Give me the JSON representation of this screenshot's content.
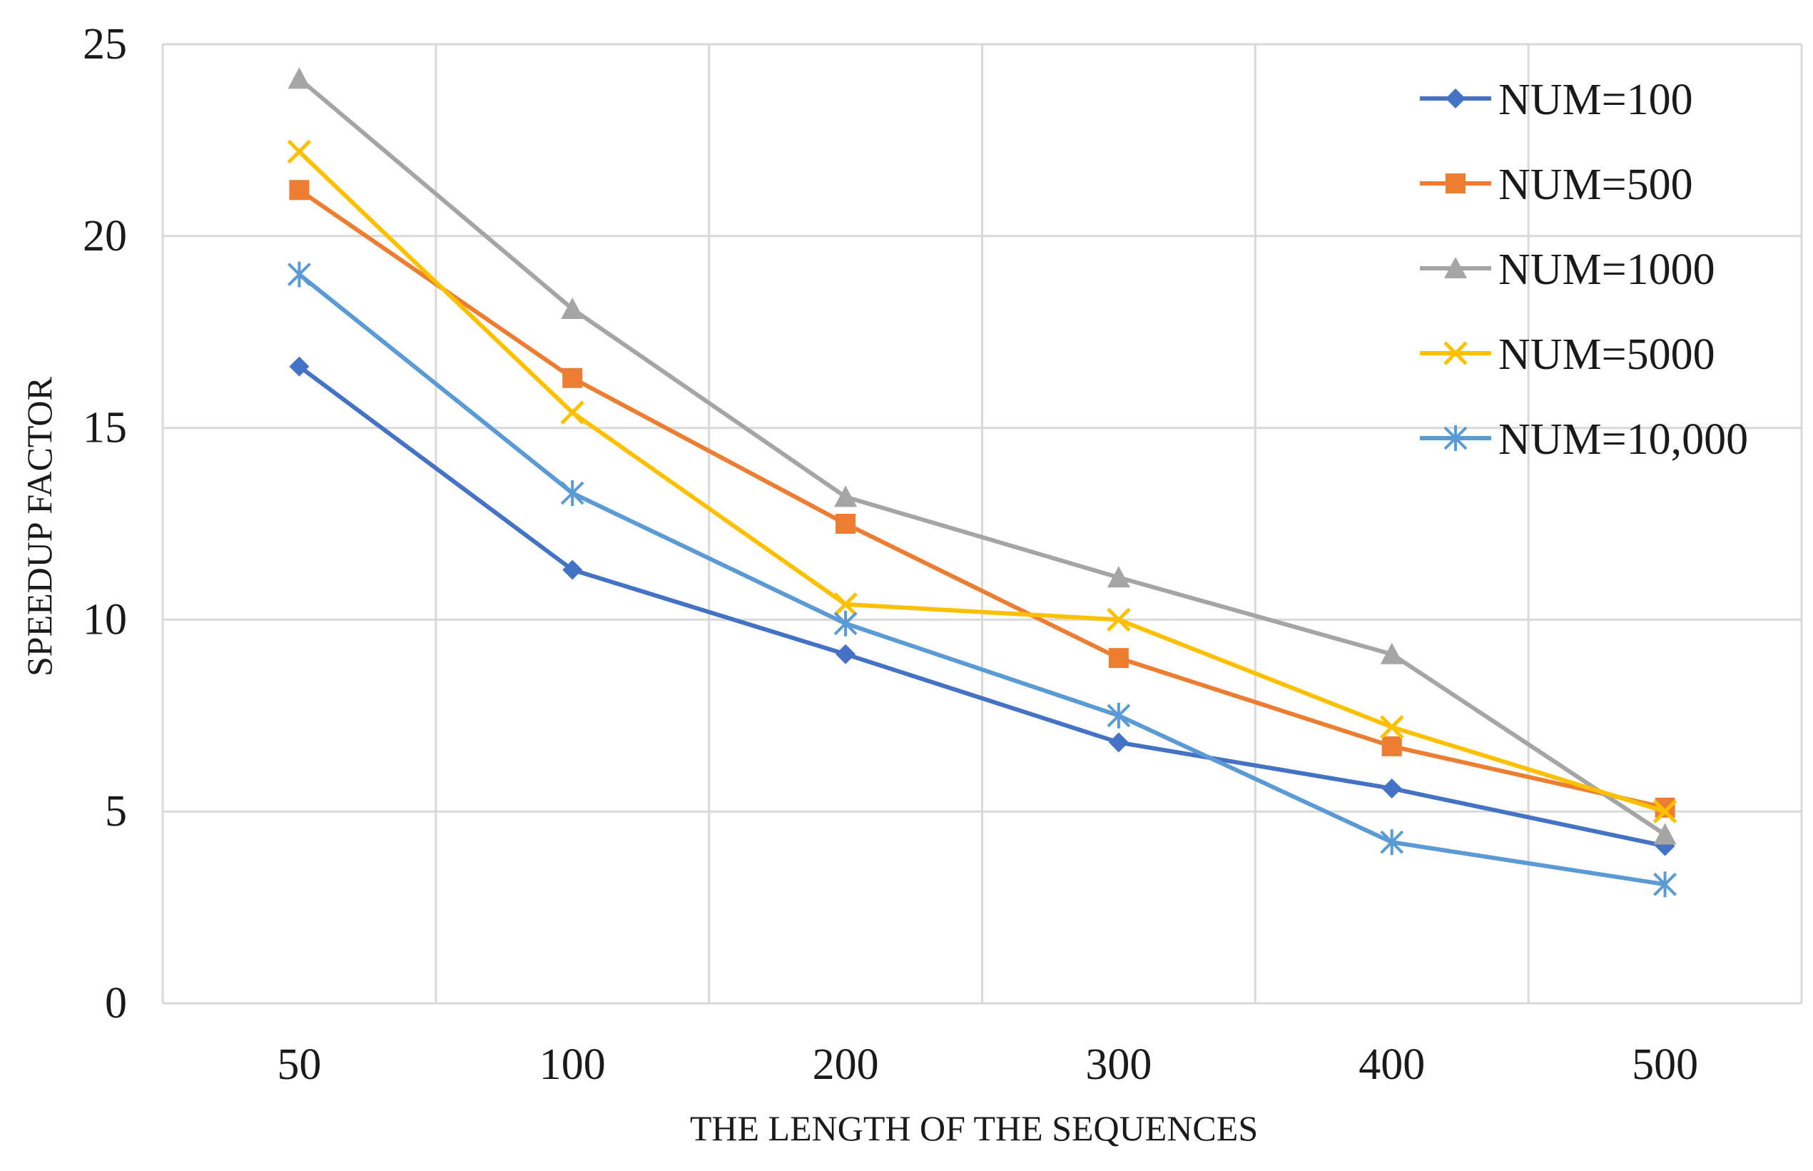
{
  "chart_data": {
    "type": "line",
    "title": "",
    "xlabel": "THE LENGTH OF THE SEQUENCES",
    "ylabel": "SPEEDUP FACTOR",
    "categories": [
      "50",
      "100",
      "200",
      "300",
      "400",
      "500"
    ],
    "ylim": [
      0,
      25
    ],
    "yticks": [
      0,
      5,
      10,
      15,
      20,
      25
    ],
    "grid": true,
    "legend_position": "top-right",
    "series": [
      {
        "name": "NUM=100",
        "color": "#4472C4",
        "marker": "diamond",
        "values": [
          16.6,
          11.3,
          9.1,
          6.8,
          5.6,
          4.1
        ]
      },
      {
        "name": "NUM=500",
        "color": "#ED7D31",
        "marker": "square",
        "values": [
          21.2,
          16.3,
          12.5,
          9.0,
          6.7,
          5.1
        ]
      },
      {
        "name": "NUM=1000",
        "color": "#A5A5A5",
        "marker": "triangle",
        "values": [
          24.1,
          18.1,
          13.2,
          11.1,
          9.1,
          4.4
        ]
      },
      {
        "name": "NUM=5000",
        "color": "#FFC000",
        "marker": "x",
        "values": [
          22.2,
          15.4,
          10.4,
          10.0,
          7.2,
          5.0
        ]
      },
      {
        "name": "NUM=10,000",
        "color": "#5B9BD5",
        "marker": "star",
        "values": [
          19.0,
          13.3,
          9.9,
          7.5,
          4.2,
          3.1
        ]
      }
    ]
  }
}
